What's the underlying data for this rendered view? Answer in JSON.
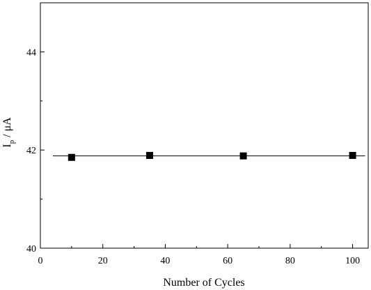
{
  "chart_data": {
    "type": "scatter",
    "xlabel": "Number of Cycles",
    "ylabel": {
      "main": "I",
      "subscript": "p",
      "suffix": " / μA"
    },
    "xlim": [
      0,
      105
    ],
    "ylim": [
      40,
      45
    ],
    "xticks": [
      0,
      20,
      40,
      60,
      80,
      100
    ],
    "yticks": [
      40,
      42,
      44
    ],
    "grid": false,
    "marker": "square",
    "series": [
      {
        "x": [
          10,
          35,
          65,
          100
        ],
        "y": [
          41.85,
          41.89,
          41.88,
          41.89
        ]
      }
    ],
    "reference_line": {
      "y": 41.88,
      "x_range": [
        4,
        104
      ]
    }
  }
}
